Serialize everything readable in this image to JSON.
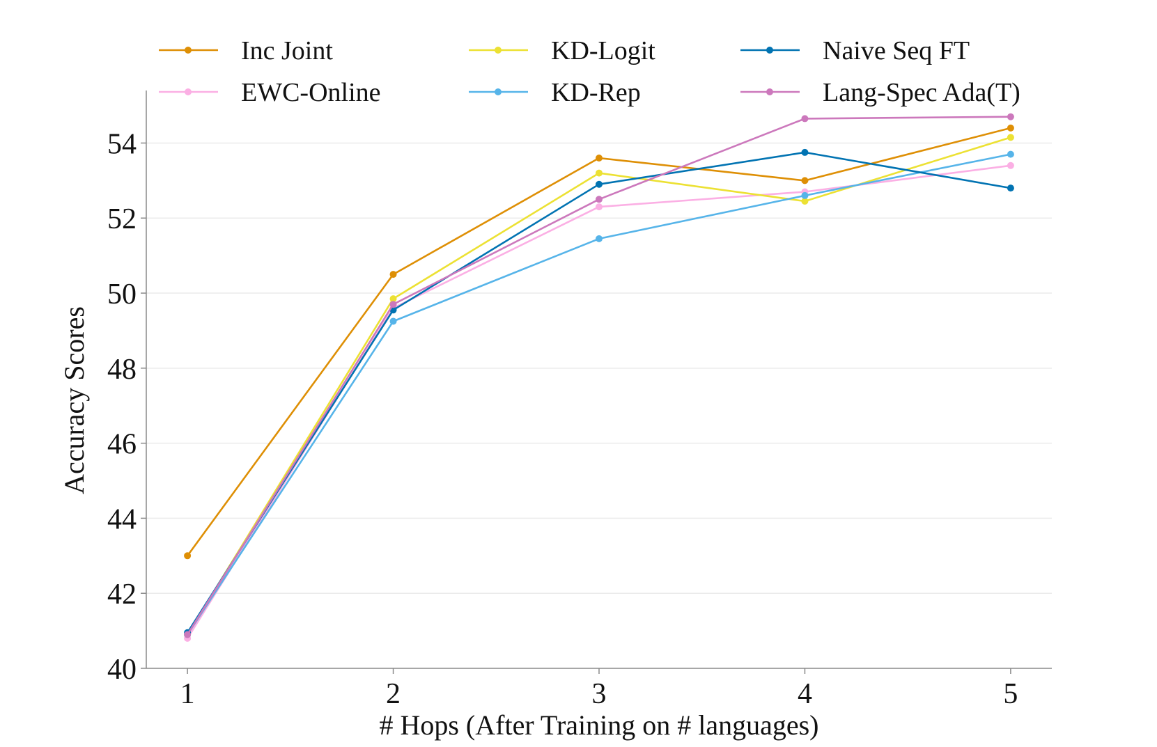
{
  "chart_data": {
    "type": "line",
    "title": "",
    "xlabel": "# Hops (After Training on # languages)",
    "ylabel": "Accuracy Scores",
    "categories": [
      "1",
      "2",
      "3",
      "4",
      "5"
    ],
    "x": [
      1,
      2,
      3,
      4,
      5
    ],
    "xlim": [
      0.8,
      5.2
    ],
    "ylim": [
      40,
      55.4
    ],
    "yticks": [
      40,
      42,
      44,
      46,
      48,
      50,
      52,
      54
    ],
    "ytick_labels": [
      "40",
      "42",
      "44",
      "46",
      "48",
      "50",
      "52",
      "54"
    ],
    "grid": "horizontal",
    "legend_position": "top",
    "legend_columns": 3,
    "series": [
      {
        "name": "Inc Joint",
        "color": "#de8f05",
        "values": [
          43.0,
          50.5,
          53.6,
          53.0,
          54.4
        ]
      },
      {
        "name": "EWC-Online",
        "color": "#fbafe4",
        "values": [
          40.8,
          49.6,
          52.3,
          52.7,
          53.4
        ]
      },
      {
        "name": "KD-Logit",
        "color": "#ece133",
        "values": [
          40.9,
          49.85,
          53.2,
          52.45,
          54.15
        ]
      },
      {
        "name": "KD-Rep",
        "color": "#56b4e9",
        "values": [
          40.9,
          49.25,
          51.45,
          52.6,
          53.7
        ]
      },
      {
        "name": "Naive Seq FT",
        "color": "#0173b2",
        "values": [
          40.95,
          49.55,
          52.9,
          53.75,
          52.8
        ]
      },
      {
        "name": "Lang-Spec Ada(T)",
        "color": "#cc78bc",
        "values": [
          40.9,
          49.7,
          52.5,
          54.65,
          54.7
        ]
      }
    ]
  }
}
